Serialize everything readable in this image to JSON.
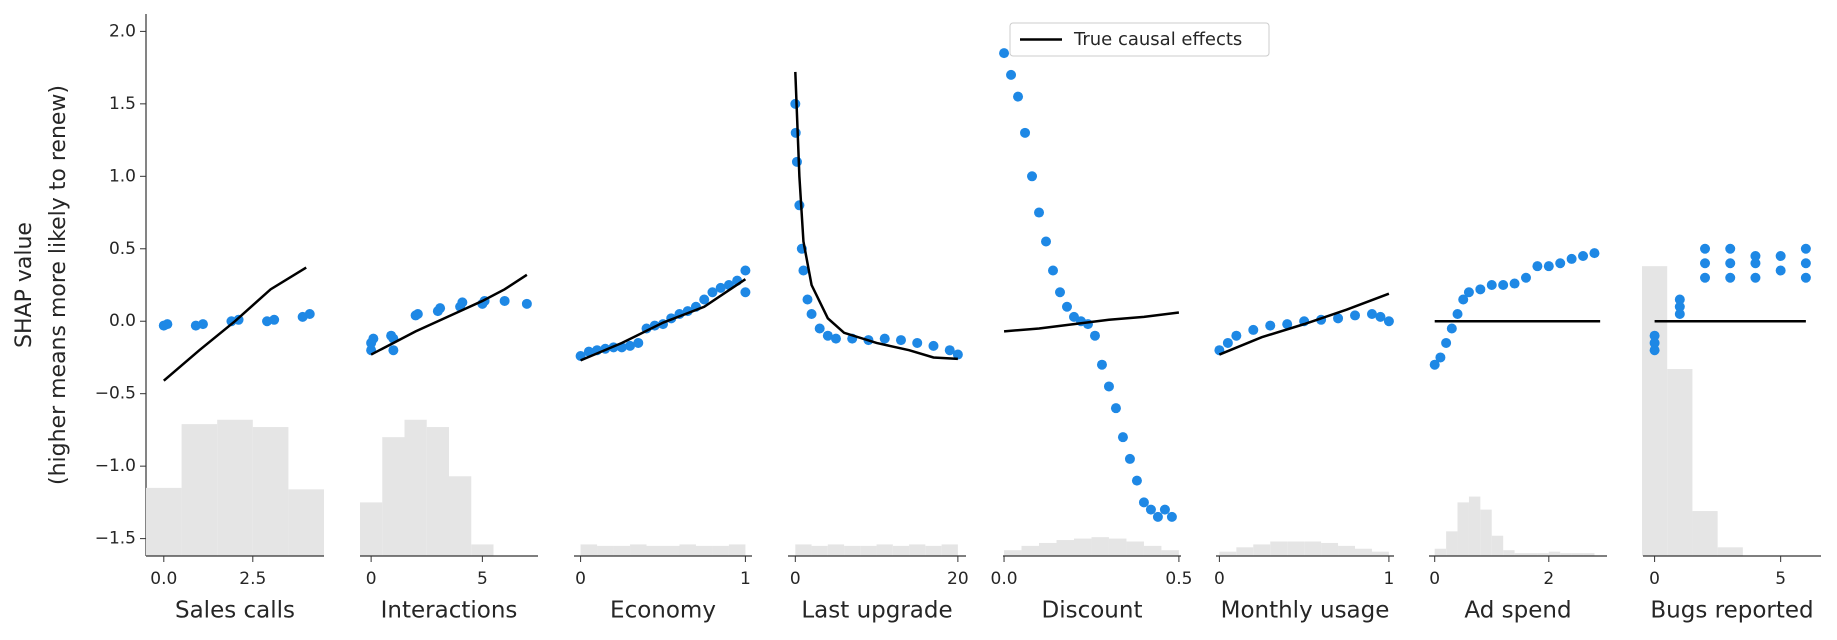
{
  "chart_data": {
    "type": "scatter",
    "ylabel": [
      "SHAP value",
      "(higher means more likely to renew)"
    ],
    "ylim": [
      -1.62,
      2.12
    ],
    "yticks": [
      {
        "value": -1.5,
        "label": "−1.5"
      },
      {
        "value": -1.0,
        "label": "−1.0"
      },
      {
        "value": -0.5,
        "label": "−0.5"
      },
      {
        "value": 0,
        "label": "0.0"
      },
      {
        "value": 0.5,
        "label": "0.5"
      },
      {
        "value": 1.0,
        "label": "1.0"
      },
      {
        "value": 1.5,
        "label": "1.5"
      },
      {
        "value": 2.0,
        "label": "2.0"
      }
    ],
    "scatter_color": "#1e88e5",
    "line_color": "#000000",
    "hist_color": "#e5e5e5",
    "legend": {
      "label": "True causal effects",
      "loc": "upper center"
    },
    "panels": [
      {
        "xlabel": "Sales calls",
        "xlim": [
          -0.5,
          4.5
        ],
        "xticks": [
          {
            "value": 0,
            "label": "0.0"
          },
          2.5
        ],
        "scatter": {
          "x": [
            0,
            0.1,
            0.9,
            1.1,
            1.9,
            2.1,
            2.9,
            3.1,
            3.9,
            4.1
          ],
          "y": [
            -0.03,
            -0.02,
            -0.03,
            -0.02,
            0,
            0.01,
            0,
            0.01,
            0.03,
            0.05
          ]
        },
        "line": {
          "x": [
            0,
            1,
            2,
            3,
            4
          ],
          "y": [
            -0.41,
            -0.2,
            0,
            0.22,
            0.37
          ]
        },
        "hist": {
          "bins": [
            -0.5,
            0.5,
            1.5,
            2.5,
            3.5,
            4.5
          ],
          "values": [
            -1.15,
            -0.71,
            -0.68,
            -0.73,
            -1.16
          ]
        }
      },
      {
        "xlabel": "Interactions",
        "xlim": [
          -0.5,
          7.5
        ],
        "xticks": [
          0,
          5
        ],
        "scatter": {
          "x": [
            0,
            0,
            0.1,
            1,
            1,
            0.9,
            2,
            2.1,
            3,
            3.1,
            4,
            4.1,
            5,
            5.1,
            6,
            7
          ],
          "y": [
            -0.2,
            -0.15,
            -0.12,
            -0.2,
            -0.12,
            -0.1,
            0.04,
            0.05,
            0.07,
            0.09,
            0.1,
            0.13,
            0.12,
            0.14,
            0.14,
            0.12
          ]
        },
        "line": {
          "x": [
            0,
            1,
            2,
            3,
            4,
            5,
            6,
            7
          ],
          "y": [
            -0.23,
            -0.15,
            -0.07,
            0,
            0.07,
            0.14,
            0.22,
            0.32
          ]
        },
        "hist": {
          "bins": [
            -0.5,
            0.5,
            1.5,
            2.5,
            3.5,
            4.5,
            5.5
          ],
          "values": [
            -1.25,
            -0.8,
            -0.68,
            -0.73,
            -1.07,
            -1.54
          ]
        }
      },
      {
        "xlabel": "Economy",
        "xlim": [
          -0.04,
          1.04
        ],
        "xticks": [
          0,
          1
        ],
        "scatter": {
          "x": [
            0,
            0.05,
            0.1,
            0.15,
            0.2,
            0.25,
            0.3,
            0.35,
            0.4,
            0.45,
            0.5,
            0.55,
            0.6,
            0.65,
            0.7,
            0.75,
            0.8,
            0.85,
            0.9,
            0.95,
            1.0,
            1.0
          ],
          "y": [
            -0.24,
            -0.21,
            -0.2,
            -0.19,
            -0.18,
            -0.18,
            -0.17,
            -0.15,
            -0.05,
            -0.03,
            -0.02,
            0.02,
            0.05,
            0.07,
            0.1,
            0.15,
            0.2,
            0.23,
            0.25,
            0.28,
            0.35,
            0.2
          ]
        },
        "line": {
          "x": [
            0,
            0.25,
            0.5,
            0.75,
            1
          ],
          "y": [
            -0.27,
            -0.15,
            -0.01,
            0.1,
            0.29
          ]
        },
        "hist": {
          "bins": [
            0,
            0.1,
            0.2,
            0.3,
            0.4,
            0.5,
            0.6,
            0.7,
            0.8,
            0.9,
            1.0
          ],
          "values": [
            -1.54,
            -1.55,
            -1.55,
            -1.54,
            -1.55,
            -1.55,
            -1.54,
            -1.55,
            -1.55,
            -1.54
          ]
        }
      },
      {
        "xlabel": "Last upgrade",
        "xlim": [
          -0.9,
          21
        ],
        "xticks": [
          0,
          20
        ],
        "scatter": {
          "x": [
            0,
            0.05,
            0.2,
            0.5,
            0.8,
            1,
            1.5,
            2,
            3,
            4,
            5,
            7,
            9,
            11,
            13,
            15,
            17,
            19,
            20
          ],
          "y": [
            1.5,
            1.3,
            1.1,
            0.8,
            0.5,
            0.35,
            0.15,
            0.05,
            -0.05,
            -0.1,
            -0.12,
            -0.12,
            -0.13,
            -0.12,
            -0.13,
            -0.15,
            -0.17,
            -0.2,
            -0.23
          ]
        },
        "line": {
          "x": [
            0,
            0.5,
            1,
            2,
            4,
            6,
            10,
            14,
            17,
            20
          ],
          "y": [
            1.72,
            1.0,
            0.55,
            0.25,
            0.02,
            -0.08,
            -0.15,
            -0.2,
            -0.25,
            -0.26
          ]
        },
        "hist": {
          "bins": [
            0,
            2,
            4,
            6,
            8,
            10,
            12,
            14,
            16,
            18,
            20
          ],
          "values": [
            -1.54,
            -1.55,
            -1.54,
            -1.55,
            -1.55,
            -1.54,
            -1.55,
            -1.54,
            -1.55,
            -1.54
          ]
        }
      },
      {
        "xlabel": "Discount",
        "xlim": [
          -0.003,
          0.506
        ],
        "xticks": [
          {
            "value": 0,
            "label": "0.0"
          },
          0.5
        ],
        "scatter": {
          "x": [
            0.0,
            0.02,
            0.04,
            0.06,
            0.08,
            0.1,
            0.12,
            0.14,
            0.16,
            0.18,
            0.2,
            0.22,
            0.24,
            0.26,
            0.28,
            0.3,
            0.32,
            0.34,
            0.36,
            0.38,
            0.4,
            0.42,
            0.44,
            0.46,
            0.48
          ],
          "y": [
            1.85,
            1.7,
            1.55,
            1.3,
            1.0,
            0.75,
            0.55,
            0.35,
            0.2,
            0.1,
            0.03,
            0.0,
            -0.02,
            -0.1,
            -0.3,
            -0.45,
            -0.6,
            -0.8,
            -0.95,
            -1.1,
            -1.25,
            -1.3,
            -1.35,
            -1.3,
            -1.35
          ]
        },
        "line": {
          "x": [
            0,
            0.1,
            0.2,
            0.3,
            0.4,
            0.5
          ],
          "y": [
            -0.07,
            -0.05,
            -0.02,
            0.01,
            0.03,
            0.06
          ]
        },
        "hist": {
          "bins": [
            0,
            0.05,
            0.1,
            0.15,
            0.2,
            0.25,
            0.3,
            0.35,
            0.4,
            0.45,
            0.5
          ],
          "values": [
            -1.58,
            -1.55,
            -1.53,
            -1.51,
            -1.5,
            -1.49,
            -1.5,
            -1.52,
            -1.55,
            -1.58
          ]
        }
      },
      {
        "xlabel": "Monthly usage",
        "xlim": [
          -0.02,
          1.03
        ],
        "xticks": [
          0,
          1
        ],
        "scatter": {
          "x": [
            0,
            0.05,
            0.1,
            0.2,
            0.3,
            0.4,
            0.5,
            0.6,
            0.7,
            0.8,
            0.9,
            0.95,
            1.0
          ],
          "y": [
            -0.2,
            -0.15,
            -0.1,
            -0.06,
            -0.03,
            -0.02,
            0.0,
            0.01,
            0.02,
            0.04,
            0.05,
            0.03,
            0.0
          ]
        },
        "line": {
          "x": [
            0,
            0.25,
            0.5,
            0.75,
            1
          ],
          "y": [
            -0.23,
            -0.11,
            -0.02,
            0.08,
            0.19
          ]
        },
        "hist": {
          "bins": [
            0,
            0.1,
            0.2,
            0.3,
            0.4,
            0.5,
            0.6,
            0.7,
            0.8,
            0.9,
            1.0
          ],
          "values": [
            -1.59,
            -1.56,
            -1.54,
            -1.52,
            -1.52,
            -1.52,
            -1.53,
            -1.55,
            -1.57,
            -1.59
          ]
        }
      },
      {
        "xlabel": "Ad spend",
        "xlim": [
          -0.1,
          3.02
        ],
        "xticks": [
          0,
          2
        ],
        "scatter": {
          "x": [
            0,
            0.1,
            0.2,
            0.3,
            0.4,
            0.5,
            0.6,
            0.8,
            1.0,
            1.2,
            1.4,
            1.6,
            1.8,
            2.0,
            2.2,
            2.4,
            2.6,
            2.8
          ],
          "y": [
            -0.3,
            -0.25,
            -0.15,
            -0.05,
            0.05,
            0.15,
            0.2,
            0.22,
            0.25,
            0.25,
            0.26,
            0.3,
            0.38,
            0.38,
            0.4,
            0.43,
            0.45,
            0.47
          ]
        },
        "line": {
          "x": [
            0,
            2.9
          ],
          "y": [
            0,
            0
          ]
        },
        "hist": {
          "bins": [
            0,
            0.2,
            0.4,
            0.6,
            0.8,
            1.0,
            1.2,
            1.4,
            1.6,
            1.8,
            2.0,
            2.2,
            2.4,
            2.6,
            2.8
          ],
          "values": [
            -1.57,
            -1.45,
            -1.25,
            -1.21,
            -1.3,
            -1.48,
            -1.58,
            -1.6,
            -1.6,
            -1.6,
            -1.59,
            -1.6,
            -1.6,
            -1.6
          ]
        }
      },
      {
        "xlabel": "Bugs reported",
        "xlim": [
          -0.46,
          6.6
        ],
        "xticks": [
          0,
          5
        ],
        "scatter": {
          "x": [
            0,
            0,
            0,
            1,
            1,
            1,
            2,
            2,
            2,
            3,
            3,
            3,
            4,
            4,
            4,
            5,
            5,
            6,
            6,
            6
          ],
          "y": [
            -0.1,
            -0.15,
            -0.2,
            0.05,
            0.1,
            0.15,
            0.3,
            0.4,
            0.5,
            0.3,
            0.4,
            0.5,
            0.3,
            0.4,
            0.45,
            0.35,
            0.45,
            0.3,
            0.4,
            0.5
          ]
        },
        "line": {
          "x": [
            0,
            6
          ],
          "y": [
            0,
            0
          ]
        },
        "hist": {
          "bins": [
            -0.5,
            0.5,
            1.5,
            2.5,
            3.5
          ],
          "values": [
            0.38,
            -0.33,
            -1.31,
            -1.56
          ]
        }
      }
    ]
  }
}
